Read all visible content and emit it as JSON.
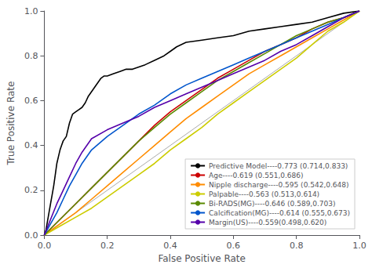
{
  "chart_data": {
    "type": "line",
    "xlabel": "False Positive Rate",
    "ylabel": "True Positive Rate",
    "xlim": [
      0.0,
      1.0
    ],
    "ylim": [
      0.0,
      1.0
    ],
    "xticks": [
      {
        "value": 0.0,
        "label": "0.0"
      },
      0.2,
      0.4,
      0.6,
      0.8,
      {
        "value": 1.0,
        "label": "1.0"
      }
    ],
    "yticks": [
      {
        "value": 0.0,
        "label": "0.0"
      },
      0.2,
      0.4,
      0.6,
      0.8,
      {
        "value": 1.0,
        "label": "1.0"
      }
    ],
    "grid": false,
    "legend": "lower right",
    "series": [
      {
        "color": "#aaaaaa",
        "x": [
          0,
          1
        ],
        "values": [
          0,
          1
        ]
      },
      {
        "name": "Predictive Model----0.773 (0.714,0.833)",
        "color": "#000000",
        "x": [
          0.0,
          0.005,
          0.01,
          0.015,
          0.02,
          0.025,
          0.03,
          0.035,
          0.04,
          0.045,
          0.05,
          0.055,
          0.06,
          0.07,
          0.08,
          0.085,
          0.09,
          0.1,
          0.11,
          0.12,
          0.13,
          0.14,
          0.15,
          0.16,
          0.17,
          0.18,
          0.19,
          0.2,
          0.22,
          0.24,
          0.26,
          0.28,
          0.3,
          0.32,
          0.35,
          0.38,
          0.4,
          0.42,
          0.45,
          0.5,
          0.55,
          0.6,
          0.65,
          0.7,
          0.75,
          0.8,
          0.85,
          0.9,
          0.95,
          1.0
        ],
        "values": [
          0.0,
          0.02,
          0.06,
          0.1,
          0.14,
          0.18,
          0.22,
          0.27,
          0.32,
          0.35,
          0.38,
          0.4,
          0.42,
          0.44,
          0.5,
          0.52,
          0.54,
          0.55,
          0.56,
          0.57,
          0.59,
          0.62,
          0.64,
          0.66,
          0.68,
          0.7,
          0.71,
          0.71,
          0.72,
          0.73,
          0.74,
          0.74,
          0.75,
          0.76,
          0.78,
          0.8,
          0.82,
          0.84,
          0.86,
          0.87,
          0.88,
          0.89,
          0.91,
          0.92,
          0.93,
          0.94,
          0.95,
          0.97,
          0.99,
          1.0
        ]
      },
      {
        "name": "Age----0.619 (0.551,0.686)",
        "color": "#cc0000",
        "x": [
          0.0,
          0.05,
          0.1,
          0.15,
          0.2,
          0.25,
          0.3,
          0.35,
          0.4,
          0.45,
          0.5,
          0.55,
          0.6,
          0.65,
          0.7,
          0.75,
          0.8,
          0.85,
          0.9,
          0.95,
          1.0
        ],
        "values": [
          0.0,
          0.07,
          0.14,
          0.21,
          0.28,
          0.35,
          0.42,
          0.49,
          0.55,
          0.6,
          0.65,
          0.7,
          0.74,
          0.78,
          0.82,
          0.85,
          0.88,
          0.92,
          0.95,
          0.97,
          1.0
        ]
      },
      {
        "name": "Nipple discharge----0.595 (0.542,0.648)",
        "color": "#FF8C00",
        "x": [
          0.0,
          0.05,
          0.1,
          0.15,
          0.2,
          0.25,
          0.3,
          0.35,
          0.4,
          0.45,
          0.5,
          0.55,
          0.6,
          0.65,
          0.7,
          0.75,
          0.8,
          0.85,
          0.9,
          0.95,
          1.0
        ],
        "values": [
          0.0,
          0.05,
          0.1,
          0.16,
          0.22,
          0.28,
          0.34,
          0.4,
          0.46,
          0.52,
          0.57,
          0.62,
          0.67,
          0.72,
          0.76,
          0.8,
          0.84,
          0.88,
          0.92,
          0.96,
          1.0
        ]
      },
      {
        "name": "Palpable----0.563 (0.513,0.614)",
        "color": "#cccc00",
        "x": [
          0.0,
          0.05,
          0.1,
          0.15,
          0.2,
          0.25,
          0.3,
          0.35,
          0.4,
          0.45,
          0.5,
          0.55,
          0.6,
          0.65,
          0.7,
          0.75,
          0.8,
          0.85,
          0.9,
          0.95,
          1.0
        ],
        "values": [
          0.0,
          0.04,
          0.08,
          0.12,
          0.17,
          0.22,
          0.27,
          0.32,
          0.38,
          0.43,
          0.48,
          0.54,
          0.59,
          0.64,
          0.69,
          0.74,
          0.79,
          0.85,
          0.91,
          0.95,
          1.0
        ]
      },
      {
        "name": "Bi-RADS(MG)----0.646 (0.589,0.703)",
        "color": "#5a8a00",
        "x": [
          0.0,
          0.05,
          0.1,
          0.15,
          0.2,
          0.25,
          0.3,
          0.35,
          0.4,
          0.45,
          0.5,
          0.55,
          0.6,
          0.65,
          0.7,
          0.75,
          0.8,
          0.85,
          0.9,
          0.95,
          1.0
        ],
        "values": [
          0.0,
          0.07,
          0.14,
          0.21,
          0.28,
          0.35,
          0.42,
          0.48,
          0.54,
          0.59,
          0.64,
          0.69,
          0.73,
          0.77,
          0.81,
          0.85,
          0.89,
          0.92,
          0.95,
          0.97,
          1.0
        ]
      },
      {
        "name": "Calcification(MG)----0.614 (0.555,0.673)",
        "color": "#0055cc",
        "x": [
          0.0,
          0.02,
          0.04,
          0.06,
          0.08,
          0.1,
          0.12,
          0.15,
          0.2,
          0.25,
          0.3,
          0.35,
          0.4,
          0.45,
          0.5,
          0.55,
          0.6,
          0.65,
          0.7,
          0.75,
          0.8,
          0.85,
          0.9,
          0.95,
          1.0
        ],
        "values": [
          0.0,
          0.05,
          0.1,
          0.16,
          0.22,
          0.27,
          0.32,
          0.38,
          0.44,
          0.49,
          0.54,
          0.58,
          0.63,
          0.67,
          0.7,
          0.73,
          0.76,
          0.79,
          0.82,
          0.85,
          0.88,
          0.91,
          0.94,
          0.97,
          1.0
        ]
      },
      {
        "name": "Margin(US)----0.559(0.498,0.620)",
        "color": "#5500aa",
        "x": [
          0.0,
          0.02,
          0.04,
          0.06,
          0.08,
          0.1,
          0.12,
          0.15,
          0.2,
          0.25,
          0.3,
          0.35,
          0.4,
          0.45,
          0.5,
          0.55,
          0.6,
          0.65,
          0.7,
          0.75,
          0.8,
          0.85,
          0.9,
          0.95,
          1.0
        ],
        "values": [
          0.0,
          0.07,
          0.14,
          0.2,
          0.26,
          0.32,
          0.37,
          0.43,
          0.47,
          0.5,
          0.53,
          0.57,
          0.6,
          0.63,
          0.66,
          0.69,
          0.72,
          0.75,
          0.78,
          0.82,
          0.85,
          0.89,
          0.93,
          0.97,
          1.0
        ]
      }
    ]
  }
}
